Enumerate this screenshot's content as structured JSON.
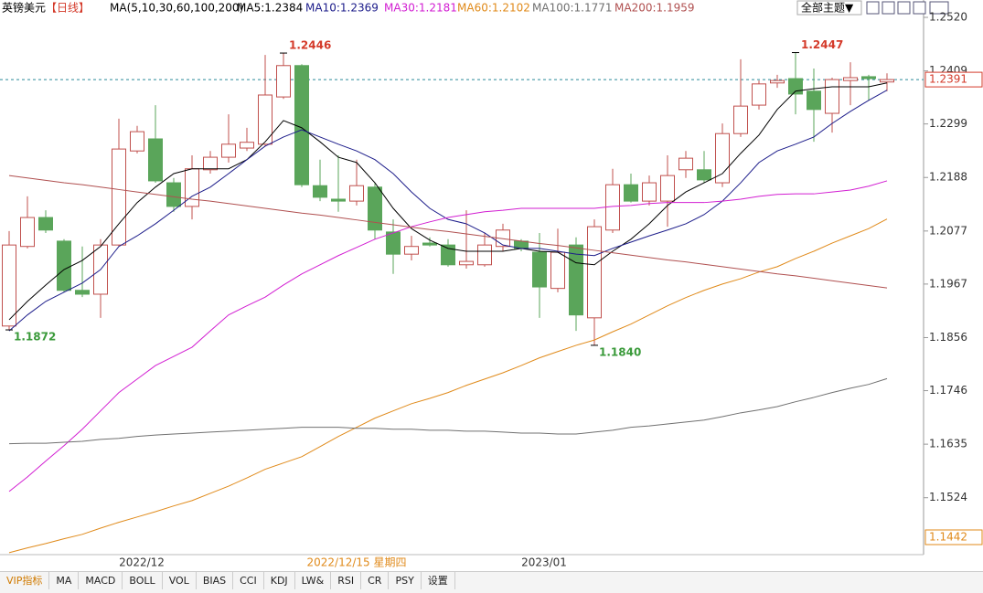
{
  "chart_data": {
    "type": "candlestick",
    "title": "英镑美元",
    "subtitle": "【日线】",
    "indicator": "MA(5,10,30,60,100,200)",
    "categories": [
      null,
      null,
      null,
      null,
      null,
      null,
      null,
      "2022/12",
      null,
      null,
      null,
      null,
      null,
      null,
      null,
      null,
      null,
      null,
      null,
      null,
      null,
      null,
      null,
      null,
      null,
      null,
      null,
      null,
      null,
      "2023/01",
      null,
      null,
      null,
      null,
      null,
      null,
      null,
      null,
      null,
      null,
      null,
      null,
      null,
      null,
      null,
      null,
      null,
      null,
      null
    ],
    "open": [
      1.188,
      1.2045,
      1.2105,
      1.2056,
      1.1954,
      1.1946,
      1.2048,
      1.2243,
      1.2268,
      1.2177,
      1.2128,
      1.2204,
      1.223,
      1.2249,
      1.2257,
      1.2355,
      1.242,
      1.2171,
      1.2143,
      1.2139,
      1.2168,
      1.2075,
      1.2029,
      1.2052,
      1.2048,
      1.2007,
      1.2007,
      1.2045,
      1.2056,
      1.2033,
      1.1958,
      1.2048,
      1.1897,
      1.2079,
      1.2173,
      1.2139,
      1.2139,
      1.2204,
      1.2204,
      1.2177,
      1.2279,
      1.2338,
      1.2384,
      1.2393,
      1.2367,
      1.2321,
      1.2389,
      1.2397,
      1.2386
    ],
    "high": [
      1.2077,
      1.2149,
      1.212,
      1.206,
      1.2045,
      1.206,
      1.231,
      1.2295,
      1.2338,
      1.2187,
      1.2234,
      1.2243,
      1.2319,
      1.2291,
      1.2442,
      1.2446,
      1.2423,
      1.2225,
      1.2234,
      1.2225,
      1.2177,
      1.2101,
      1.2067,
      1.2064,
      1.206,
      1.212,
      1.2073,
      1.2092,
      1.206,
      1.2073,
      1.2082,
      1.2064,
      1.2101,
      1.2206,
      1.2196,
      1.2192,
      1.2234,
      1.2243,
      1.2243,
      1.23,
      1.2433,
      1.2389,
      1.2401,
      1.2447,
      1.2414,
      1.2395,
      1.2427,
      1.2401,
      1.2404
    ],
    "low": [
      1.1872,
      1.2041,
      1.2073,
      1.195,
      1.194,
      1.1897,
      1.2045,
      1.2238,
      1.2177,
      1.2117,
      1.2101,
      1.2196,
      1.2219,
      1.2243,
      1.2253,
      1.2351,
      1.2168,
      1.2139,
      1.2117,
      1.213,
      1.206,
      1.1988,
      1.2016,
      1.2045,
      1.2003,
      1.1999,
      1.2003,
      1.2035,
      1.2035,
      1.1897,
      1.195,
      1.187,
      1.184,
      1.2073,
      1.2136,
      1.213,
      1.2086,
      1.2187,
      1.2177,
      1.2168,
      1.2272,
      1.2329,
      1.2374,
      1.2319,
      1.2262,
      1.2281,
      1.2338,
      1.2348,
      1.2367
    ],
    "close": [
      1.2048,
      1.2105,
      1.2079,
      1.1954,
      1.1946,
      1.2048,
      1.2247,
      1.2283,
      1.2181,
      1.2128,
      1.2206,
      1.223,
      1.2257,
      1.2261,
      1.2359,
      1.242,
      1.2173,
      1.2147,
      1.2139,
      1.2171,
      1.2079,
      1.2029,
      1.2045,
      1.2048,
      1.2007,
      1.2014,
      1.2048,
      1.2079,
      1.2041,
      1.1961,
      1.2033,
      1.1903,
      1.2086,
      1.2173,
      1.2139,
      1.2177,
      1.2192,
      1.2228,
      1.2183,
      1.2279,
      1.2336,
      1.2382,
      1.2389,
      1.2361,
      1.2329,
      1.2391,
      1.2395,
      1.2393,
      1.2391
    ],
    "high_labels": [
      null,
      null,
      null,
      null,
      null,
      null,
      null,
      null,
      null,
      null,
      null,
      null,
      null,
      null,
      null,
      "1.2446",
      null,
      null,
      null,
      null,
      null,
      null,
      null,
      null,
      null,
      null,
      null,
      null,
      null,
      null,
      null,
      null,
      null,
      null,
      null,
      null,
      null,
      null,
      null,
      null,
      null,
      null,
      null,
      "1.2447",
      null,
      null,
      null,
      null,
      null
    ],
    "low_labels": [
      "1.1872",
      null,
      null,
      null,
      null,
      null,
      null,
      null,
      null,
      null,
      null,
      null,
      null,
      null,
      null,
      null,
      null,
      null,
      null,
      null,
      null,
      null,
      null,
      null,
      null,
      null,
      null,
      null,
      null,
      null,
      null,
      null,
      "1.1840",
      null,
      null,
      null,
      null,
      null,
      null,
      null,
      null,
      null,
      null,
      null,
      null,
      null,
      null,
      null,
      null
    ],
    "up_color": "#c0504d",
    "down_color": "#5aa55a",
    "series": [
      {
        "name": "MA5:1.2384",
        "color": "#000000",
        "values": [
          1.1893,
          1.1931,
          1.1965,
          1.1997,
          1.2016,
          1.2045,
          1.2092,
          1.2136,
          1.2168,
          1.2196,
          1.2206,
          1.2206,
          1.2206,
          1.2225,
          1.2262,
          1.2306,
          1.2291,
          1.2262,
          1.223,
          1.2219,
          1.2177,
          1.2124,
          1.2082,
          1.2058,
          1.2041,
          1.2035,
          1.2035,
          1.2035,
          1.2041,
          1.2035,
          1.2033,
          1.2011,
          1.2007,
          1.2035,
          1.206,
          1.2092,
          1.213,
          1.2158,
          1.2177,
          1.2196,
          1.2238,
          1.2276,
          1.2329,
          1.2367,
          1.2372,
          1.2376,
          1.2376,
          1.2376,
          1.2384
        ]
      },
      {
        "name": "MA10:1.2369",
        "color": "#1c1c8a",
        "values": [
          1.187,
          1.1903,
          1.1931,
          1.195,
          1.1969,
          1.1997,
          1.2045,
          1.2067,
          1.2092,
          1.212,
          1.2149,
          1.2168,
          1.2196,
          1.2225,
          1.2253,
          1.2272,
          1.2287,
          1.2272,
          1.2257,
          1.2243,
          1.2225,
          1.2196,
          1.2158,
          1.2124,
          1.2101,
          1.2092,
          1.2073,
          1.2048,
          1.2041,
          1.2041,
          1.2035,
          1.2029,
          1.2026,
          1.2041,
          1.2054,
          1.2067,
          1.2079,
          1.2092,
          1.2111,
          1.2139,
          1.2177,
          1.2219,
          1.2243,
          1.2257,
          1.2272,
          1.23,
          1.2325,
          1.2348,
          1.2369
        ]
      },
      {
        "name": "MA30:1.2181",
        "color": "#d21ed2",
        "values": [
          1.1537,
          1.1567,
          1.16,
          1.1632,
          1.1666,
          1.1704,
          1.1742,
          1.177,
          1.1798,
          1.1817,
          1.1836,
          1.187,
          1.1903,
          1.1922,
          1.194,
          1.1965,
          1.1988,
          1.2007,
          1.2026,
          1.2043,
          1.206,
          1.2073,
          1.2086,
          1.2096,
          1.2105,
          1.2111,
          1.2117,
          1.212,
          1.2124,
          1.2124,
          1.2124,
          1.2124,
          1.2124,
          1.2128,
          1.213,
          1.2134,
          1.2136,
          1.2136,
          1.2136,
          1.2139,
          1.2143,
          1.2149,
          1.2153,
          1.2154,
          1.2154,
          1.2158,
          1.2162,
          1.217,
          1.2181
        ]
      },
      {
        "name": "MA60:1.2102",
        "color": "#e08a1a",
        "values": [
          1.141,
          1.142,
          1.1429,
          1.1439,
          1.1448,
          1.1461,
          1.1473,
          1.1484,
          1.1495,
          1.1507,
          1.1518,
          1.1533,
          1.1548,
          1.1565,
          1.1583,
          1.1596,
          1.1609,
          1.163,
          1.1651,
          1.167,
          1.1689,
          1.1704,
          1.1719,
          1.173,
          1.1742,
          1.1757,
          1.177,
          1.1783,
          1.1798,
          1.1814,
          1.1827,
          1.184,
          1.1851,
          1.1868,
          1.1884,
          1.1903,
          1.1922,
          1.1939,
          1.1954,
          1.1967,
          1.1978,
          1.1992,
          1.2003,
          1.202,
          1.2035,
          1.2052,
          1.2067,
          1.2082,
          1.2102
        ]
      },
      {
        "name": "MA100:1.1771",
        "color": "#707070",
        "values": [
          1.1636,
          1.1637,
          1.1637,
          1.1639,
          1.1641,
          1.1645,
          1.1647,
          1.1651,
          1.1654,
          1.1656,
          1.1658,
          1.166,
          1.1662,
          1.1664,
          1.1666,
          1.1668,
          1.167,
          1.167,
          1.167,
          1.1668,
          1.1668,
          1.1666,
          1.1666,
          1.1664,
          1.1664,
          1.1662,
          1.1662,
          1.166,
          1.1658,
          1.1658,
          1.1656,
          1.1656,
          1.166,
          1.1664,
          1.167,
          1.1673,
          1.1677,
          1.1681,
          1.1685,
          1.1692,
          1.17,
          1.1706,
          1.1713,
          1.1723,
          1.1732,
          1.1742,
          1.1751,
          1.1759,
          1.1771
        ]
      },
      {
        "name": "MA200:1.1959",
        "color": "#b05050",
        "values": [
          1.2192,
          1.2187,
          1.2182,
          1.2177,
          1.2173,
          1.2168,
          1.2163,
          1.2158,
          1.2153,
          1.2148,
          1.2143,
          1.2139,
          1.2134,
          1.2129,
          1.2124,
          1.2119,
          1.2114,
          1.211,
          1.2105,
          1.21,
          1.2095,
          1.209,
          1.2085,
          1.208,
          1.2076,
          1.2071,
          1.2066,
          1.2061,
          1.2056,
          1.2051,
          1.2047,
          1.2042,
          1.2037,
          1.2032,
          1.2027,
          1.2022,
          1.2017,
          1.2013,
          1.2008,
          1.2003,
          1.1998,
          1.1993,
          1.1988,
          1.1984,
          1.1979,
          1.1974,
          1.1969,
          1.1964,
          1.1959
        ]
      }
    ],
    "ylim": [
      1.1406,
      1.2556
    ],
    "yticks": [
      {
        "value": 1.252,
        "label": "1.2520"
      },
      1.2409,
      1.2299,
      1.2188,
      1.2077,
      1.1967,
      1.1856,
      1.1746,
      1.1635,
      1.1524
    ],
    "price_tags": [
      1.2391,
      1.1442
    ],
    "cursor_label": "2022/12/15 星期四"
  },
  "toolbar": {
    "theme_button": "全部主题▼"
  },
  "tabs": [
    "VIP指标",
    "MA",
    "MACD",
    "BOLL",
    "VOL",
    "BIAS",
    "CCI",
    "KDJ",
    "LW&",
    "RSI",
    "CR",
    "PSY",
    "设置"
  ]
}
